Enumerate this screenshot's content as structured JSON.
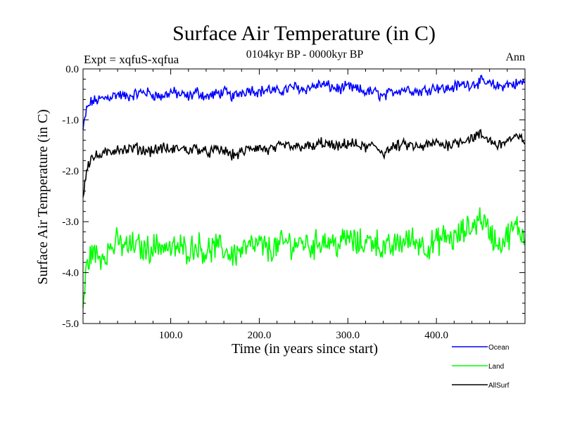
{
  "chart_data": {
    "type": "line",
    "title": "Surface Air Temperature (in C)",
    "experiment": "Expt = xqfuS-xqfua",
    "period": "0104kyr BP - 0000kyr BP",
    "season": "Ann",
    "xlabel": "Time (in years since start)",
    "ylabel": "Surface Air Temperature (in C)",
    "xlim": [
      1,
      500
    ],
    "ylim": [
      -5.0,
      0.0
    ],
    "xticks": [
      100,
      200,
      300,
      400
    ],
    "xtick_labels": [
      "100.0",
      "200.0",
      "300.0",
      "400.0"
    ],
    "yticks": [
      0,
      -1,
      -2,
      -3,
      -4,
      -5
    ],
    "ytick_labels": [
      "0.0",
      "-1.0",
      "-2.0",
      "-3.0",
      "-4.0",
      "-5.0"
    ],
    "grid": false,
    "legend_position": "bottom-right",
    "series": [
      {
        "name": "Ocean",
        "color": "#0000ff",
        "x": [
          1,
          5,
          10,
          20,
          30,
          40,
          50,
          60,
          70,
          80,
          90,
          100,
          110,
          120,
          130,
          140,
          150,
          160,
          170,
          180,
          190,
          200,
          210,
          220,
          230,
          240,
          250,
          260,
          270,
          280,
          290,
          300,
          310,
          320,
          330,
          340,
          350,
          360,
          370,
          380,
          390,
          400,
          410,
          420,
          430,
          440,
          450,
          460,
          470,
          480,
          490,
          500
        ],
        "values": [
          -1.2,
          -0.8,
          -0.65,
          -0.6,
          -0.55,
          -0.5,
          -0.55,
          -0.5,
          -0.45,
          -0.5,
          -0.55,
          -0.45,
          -0.5,
          -0.55,
          -0.45,
          -0.55,
          -0.5,
          -0.45,
          -0.55,
          -0.45,
          -0.4,
          -0.45,
          -0.4,
          -0.45,
          -0.4,
          -0.35,
          -0.4,
          -0.35,
          -0.3,
          -0.35,
          -0.4,
          -0.35,
          -0.4,
          -0.45,
          -0.45,
          -0.55,
          -0.45,
          -0.4,
          -0.4,
          -0.45,
          -0.4,
          -0.35,
          -0.4,
          -0.35,
          -0.3,
          -0.3,
          -0.25,
          -0.3,
          -0.35,
          -0.3,
          -0.3,
          -0.25
        ]
      },
      {
        "name": "Land",
        "color": "#00ff00",
        "x": [
          1,
          5,
          10,
          20,
          30,
          40,
          50,
          60,
          70,
          80,
          90,
          100,
          110,
          120,
          130,
          140,
          150,
          160,
          170,
          180,
          190,
          200,
          210,
          220,
          230,
          240,
          250,
          260,
          270,
          280,
          290,
          300,
          310,
          320,
          330,
          340,
          350,
          360,
          370,
          380,
          390,
          400,
          410,
          420,
          430,
          440,
          450,
          460,
          470,
          480,
          490,
          500
        ],
        "values": [
          -4.7,
          -3.9,
          -3.6,
          -3.7,
          -3.55,
          -3.4,
          -3.5,
          -3.45,
          -3.55,
          -3.5,
          -3.45,
          -3.55,
          -3.5,
          -3.55,
          -3.45,
          -3.6,
          -3.5,
          -3.55,
          -3.65,
          -3.55,
          -3.5,
          -3.45,
          -3.55,
          -3.5,
          -3.4,
          -3.45,
          -3.4,
          -3.5,
          -3.35,
          -3.4,
          -3.45,
          -3.3,
          -3.45,
          -3.4,
          -3.35,
          -3.55,
          -3.5,
          -3.4,
          -3.35,
          -3.4,
          -3.5,
          -3.4,
          -3.3,
          -3.35,
          -3.2,
          -3.1,
          -2.9,
          -3.2,
          -3.45,
          -3.3,
          -3.1,
          -3.3
        ]
      },
      {
        "name": "AllSurf",
        "color": "#000000",
        "x": [
          1,
          5,
          10,
          20,
          30,
          40,
          50,
          60,
          70,
          80,
          90,
          100,
          110,
          120,
          130,
          140,
          150,
          160,
          170,
          180,
          190,
          200,
          210,
          220,
          230,
          240,
          250,
          260,
          270,
          280,
          290,
          300,
          310,
          320,
          330,
          340,
          350,
          360,
          370,
          380,
          390,
          400,
          410,
          420,
          430,
          440,
          450,
          460,
          470,
          480,
          490,
          500
        ],
        "values": [
          -2.5,
          -1.95,
          -1.75,
          -1.7,
          -1.65,
          -1.55,
          -1.6,
          -1.55,
          -1.6,
          -1.6,
          -1.55,
          -1.6,
          -1.55,
          -1.6,
          -1.55,
          -1.65,
          -1.6,
          -1.6,
          -1.7,
          -1.65,
          -1.55,
          -1.55,
          -1.6,
          -1.55,
          -1.5,
          -1.55,
          -1.5,
          -1.55,
          -1.45,
          -1.5,
          -1.55,
          -1.45,
          -1.5,
          -1.55,
          -1.5,
          -1.65,
          -1.55,
          -1.5,
          -1.5,
          -1.55,
          -1.5,
          -1.45,
          -1.5,
          -1.45,
          -1.4,
          -1.35,
          -1.3,
          -1.4,
          -1.5,
          -1.4,
          -1.35,
          -1.4
        ]
      }
    ]
  }
}
